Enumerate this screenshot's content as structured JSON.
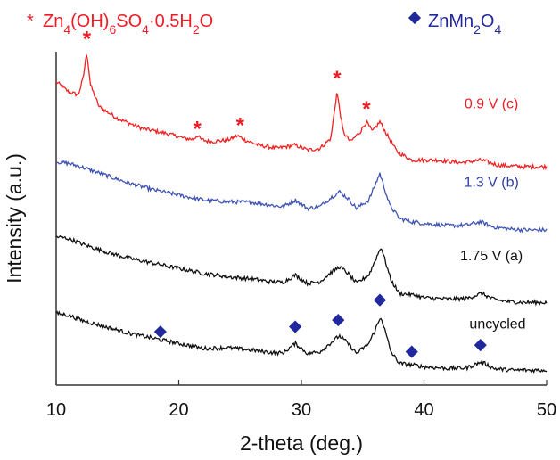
{
  "chart_data": {
    "type": "line",
    "xlabel": "2-theta (deg.)",
    "ylabel": "Intensity (a.u.)",
    "xlim": [
      10,
      50
    ],
    "x_ticks": [
      "10",
      "20",
      "30",
      "40",
      "50"
    ],
    "yticks_shown": false,
    "y_scale": "offset stacked patterns, arbitrary units",
    "legend": [
      {
        "marker": "*",
        "text": "Zn4(OH)6SO4·0.5H2O",
        "color": "#ee1c25",
        "position": "top-left"
      },
      {
        "marker": "◆",
        "text": "ZnMn2O4",
        "color": "#21289b",
        "position": "top-right"
      }
    ],
    "series": [
      {
        "name": "0.9 V (c)",
        "color": "#ee2222",
        "offset": 0.77,
        "x": [
          10,
          11,
          11.8,
          12.2,
          12.5,
          12.8,
          13.5,
          15,
          17,
          19,
          20.5,
          21.2,
          21.5,
          21.8,
          22.5,
          24,
          24.8,
          25.4,
          26.5,
          28,
          29.5,
          30.5,
          31.5,
          32.4,
          32.9,
          33.4,
          34,
          34.8,
          35.3,
          35.8,
          36.4,
          37,
          37.8,
          39,
          41,
          43,
          44.7,
          46,
          48,
          50
        ],
        "y": [
          0.91,
          0.88,
          0.87,
          0.92,
          1.0,
          0.9,
          0.835,
          0.8,
          0.77,
          0.755,
          0.74,
          0.737,
          0.75,
          0.737,
          0.73,
          0.735,
          0.748,
          0.735,
          0.72,
          0.71,
          0.72,
          0.705,
          0.71,
          0.74,
          0.88,
          0.76,
          0.73,
          0.76,
          0.79,
          0.76,
          0.79,
          0.75,
          0.7,
          0.675,
          0.675,
          0.667,
          0.675,
          0.66,
          0.655,
          0.655
        ]
      },
      {
        "name": "1.3 V (b)",
        "color": "#3f53b3",
        "offset": 0.55,
        "x": [
          10,
          11,
          12,
          14,
          16,
          18,
          20,
          22,
          24,
          26,
          27.5,
          28.5,
          29.5,
          30.5,
          31.5,
          32.5,
          33.1,
          33.8,
          34.5,
          35.5,
          36.4,
          37.2,
          38,
          39,
          40,
          42,
          43.5,
          44.6,
          45.6,
          47,
          48.5,
          50
        ],
        "y": [
          0.67,
          0.665,
          0.655,
          0.63,
          0.605,
          0.585,
          0.57,
          0.555,
          0.55,
          0.548,
          0.54,
          0.535,
          0.555,
          0.53,
          0.535,
          0.565,
          0.58,
          0.56,
          0.53,
          0.555,
          0.635,
          0.54,
          0.5,
          0.49,
          0.485,
          0.478,
          0.48,
          0.49,
          0.475,
          0.468,
          0.465,
          0.465
        ]
      },
      {
        "name": "1.75 V (a)",
        "color": "#111111",
        "offset": 0.3,
        "x": [
          10,
          11,
          12,
          14,
          16,
          18,
          20,
          22,
          24,
          26,
          27.5,
          28.5,
          29.5,
          30.5,
          31.5,
          32.5,
          33.1,
          33.8,
          34.5,
          35.5,
          36.5,
          37.3,
          38,
          39.2,
          40,
          42,
          43.5,
          44.7,
          45.7,
          47,
          48.5,
          50
        ],
        "y": [
          0.445,
          0.44,
          0.425,
          0.4,
          0.38,
          0.365,
          0.35,
          0.335,
          0.325,
          0.318,
          0.31,
          0.308,
          0.33,
          0.305,
          0.31,
          0.34,
          0.355,
          0.335,
          0.305,
          0.33,
          0.415,
          0.315,
          0.275,
          0.27,
          0.262,
          0.258,
          0.26,
          0.275,
          0.257,
          0.25,
          0.248,
          0.248
        ]
      },
      {
        "name": "uncycled",
        "color": "#111111",
        "offset": 0.08,
        "x": [
          10,
          11,
          12,
          14,
          16,
          18,
          20,
          22,
          24,
          26,
          27.5,
          28.5,
          29.5,
          30.5,
          31.5,
          32.5,
          33.1,
          33.8,
          34.5,
          35.5,
          36.5,
          37.3,
          38,
          39.2,
          40,
          42,
          43.5,
          44.7,
          45.7,
          47,
          48.5,
          50
        ],
        "y": [
          0.215,
          0.21,
          0.195,
          0.175,
          0.155,
          0.14,
          0.125,
          0.11,
          0.112,
          0.105,
          0.098,
          0.096,
          0.125,
          0.095,
          0.1,
          0.13,
          0.148,
          0.125,
          0.095,
          0.125,
          0.205,
          0.1,
          0.065,
          0.06,
          0.055,
          0.05,
          0.052,
          0.07,
          0.05,
          0.045,
          0.045,
          0.045
        ]
      }
    ],
    "markers": {
      "star": {
        "color": "#ee1c25",
        "x": [
          12.5,
          21.5,
          25.0,
          32.9,
          35.3
        ],
        "y": [
          1.05,
          0.78,
          0.79,
          0.93,
          0.84
        ]
      },
      "diamond": {
        "color": "#21289b",
        "x": [
          18.5,
          29.5,
          33.0,
          36.4,
          39.0,
          44.6
        ],
        "y": [
          0.16,
          0.175,
          0.195,
          0.255,
          0.1,
          0.12
        ]
      }
    },
    "curve_labels": [
      {
        "text": "0.9 V (c)",
        "color": "#ee1c25",
        "x": 45.5,
        "y": 0.83
      },
      {
        "text": "1.3 V (b)",
        "color": "#2f3fa5",
        "x": 45.5,
        "y": 0.595
      },
      {
        "text": "1.75 V (a)",
        "color": "#111111",
        "x": 45.5,
        "y": 0.375
      },
      {
        "text": "uncycled",
        "color": "#111111",
        "x": 46.0,
        "y": 0.17
      }
    ],
    "grid": false
  }
}
